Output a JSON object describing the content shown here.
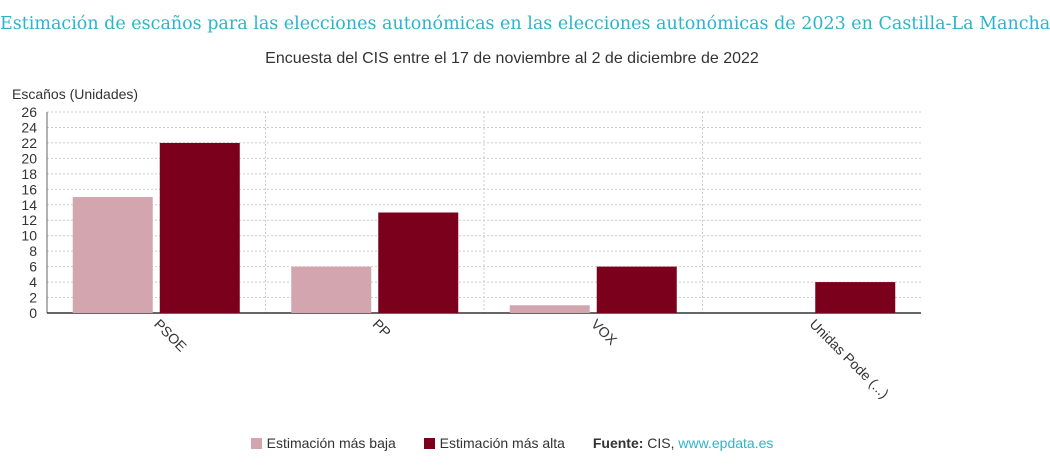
{
  "header": {
    "title": "Estimación de escaños para las elecciones autonómicas en las elecciones autonómicas de 2023 en Castilla-La Mancha",
    "subtitle": "Encuesta del CIS entre el 17 de noviembre al 2 de diciembre de 2022"
  },
  "footer": {
    "source_label": "Fuente:",
    "source_name": "CIS,",
    "source_link": "www.epdata.es"
  },
  "chart_data": {
    "type": "bar",
    "ylabel": "Escaños (Unidades)",
    "xlabel": "",
    "categories": [
      "PSOE",
      "PP",
      "VOX",
      "Unidas Pode (...)"
    ],
    "series": [
      {
        "name": "Estimación más baja",
        "color": "#d3a5ae",
        "values": [
          15,
          6,
          1,
          0
        ]
      },
      {
        "name": "Estimación más alta",
        "color": "#7a001c",
        "values": [
          22,
          13,
          6,
          4
        ]
      }
    ],
    "ylim": [
      0,
      26
    ],
    "yticks": [
      0,
      2,
      4,
      6,
      8,
      10,
      12,
      14,
      16,
      18,
      20,
      22,
      24,
      26
    ],
    "grid": true,
    "legend_position": "bottom"
  }
}
